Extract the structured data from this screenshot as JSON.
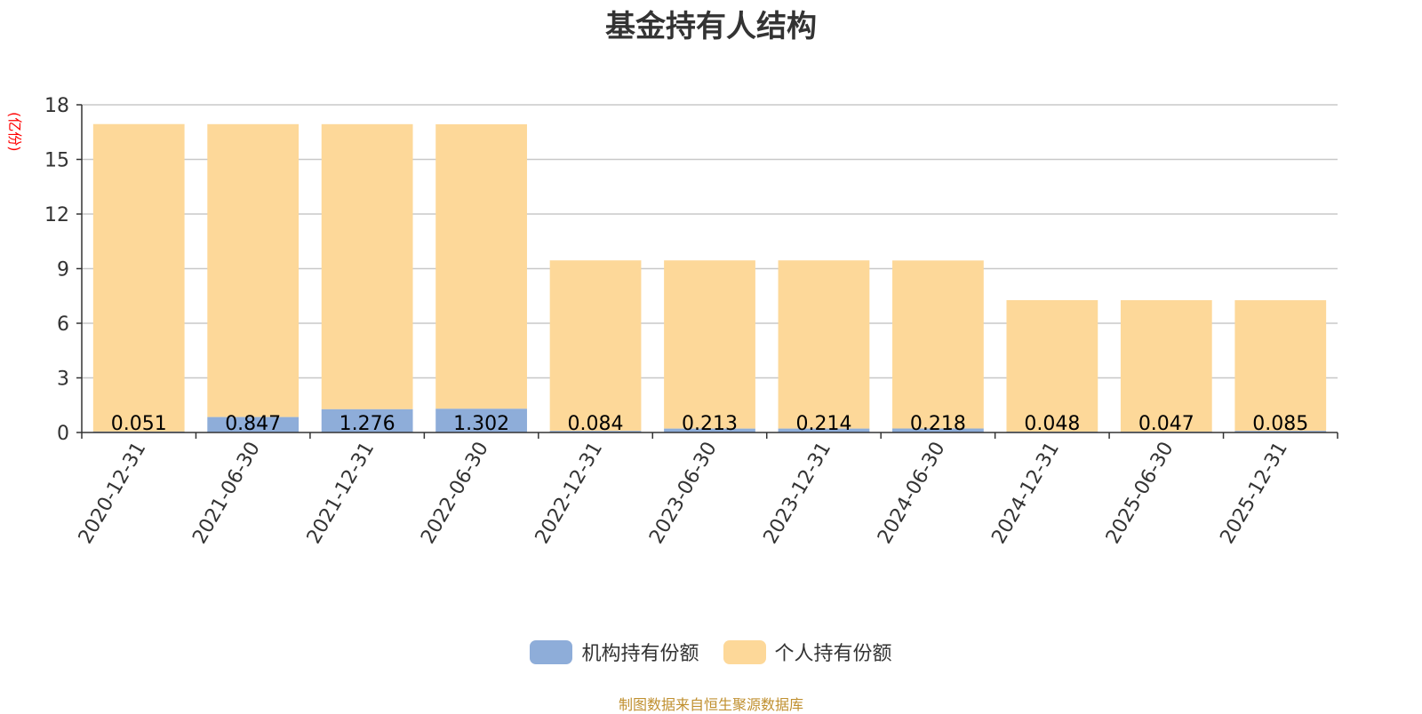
{
  "title": "基金持有人结构",
  "source_note": "制图数据来自恒生聚源数据库",
  "chart_data": {
    "type": "bar",
    "stacked": true,
    "title": "基金持有人结构",
    "ylabel": "(亿份)",
    "ylim": [
      0,
      18
    ],
    "yticks": [
      0,
      3,
      6,
      9,
      12,
      15,
      18
    ],
    "grid": true,
    "legend_position": "bottom",
    "categories": [
      "2020-12-31",
      "2021-06-30",
      "2021-12-31",
      "2022-06-30",
      "2022-12-31",
      "2023-06-30",
      "2023-12-31",
      "2024-06-30",
      "2024-12-31",
      "2025-06-30",
      "2025-12-31"
    ],
    "series": [
      {
        "name": "机构持有份额",
        "color": "#8eadd9",
        "values": [
          0.051,
          0.847,
          1.276,
          1.302,
          0.084,
          0.213,
          0.214,
          0.218,
          0.048,
          0.047,
          0.085
        ],
        "labels": [
          "0.051",
          "0.847",
          "1.276",
          "1.302",
          "0.084",
          "0.213",
          "0.214",
          "0.218",
          "0.048",
          "0.047",
          "0.085"
        ]
      },
      {
        "name": "个人持有份额",
        "color": "#fdd899",
        "values": [
          16.89,
          16.09,
          15.66,
          15.63,
          9.37,
          9.24,
          9.24,
          9.23,
          7.22,
          7.22,
          7.18
        ]
      }
    ]
  }
}
